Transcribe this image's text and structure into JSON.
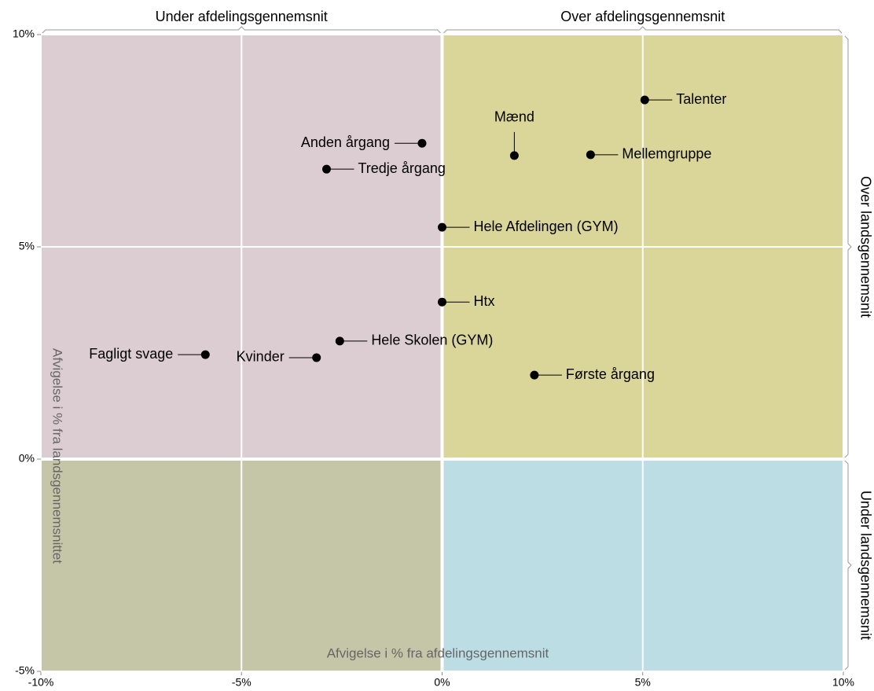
{
  "chart_data": {
    "type": "scatter",
    "x_label": "Afvigelse i % fra afdelingsgennemsnit",
    "y_label": "Afvigelse i % fra landsgennemsnittet",
    "quadrant_labels": {
      "top": [
        "Under afdelingsgennemsnit",
        "Over afdelingsgennemsnit"
      ],
      "right": [
        "Over landsgennemsnit",
        "Under landsgennemsnit"
      ]
    },
    "quadrant_colors": {
      "top_left": "#dccdd3",
      "top_right": "#dad598",
      "bottom_left": "#c5c5a8",
      "bottom_right": "#bcdde4"
    },
    "color": "#000000",
    "points": [
      {
        "label": "Talenter",
        "x": 5.05,
        "y": 8.46
      },
      {
        "label": "Mænd",
        "x": 1.8,
        "y": 7.15
      },
      {
        "label": "Mellemgruppe",
        "x": 3.7,
        "y": 7.17
      },
      {
        "label": "Anden årgang",
        "x": -0.5,
        "y": 7.44
      },
      {
        "label": "Tredje årgang",
        "x": -2.88,
        "y": 6.83
      },
      {
        "label": "Hele Afdelingen (GYM)",
        "x": 0,
        "y": 5.46
      },
      {
        "label": "Htx",
        "x": 0,
        "y": 3.7
      },
      {
        "label": "Hele Skolen (GYM)",
        "x": -2.55,
        "y": 2.78
      },
      {
        "label": "Kvinder",
        "x": -3.13,
        "y": 2.39
      },
      {
        "label": "Fagligt svage",
        "x": -5.9,
        "y": 2.46
      },
      {
        "label": "Første årgang",
        "x": 2.3,
        "y": 1.98
      }
    ],
    "xlim": [
      -10,
      10
    ],
    "ylim": [
      -5,
      10
    ],
    "xticks": [
      {
        "value": -10,
        "label": "-10%"
      },
      {
        "value": -5,
        "label": "-5%"
      },
      {
        "value": 0,
        "label": "0%"
      },
      {
        "value": 5,
        "label": "5%"
      },
      {
        "value": 10,
        "label": "10%"
      }
    ],
    "yticks": [
      {
        "value": -5,
        "label": "-5%"
      },
      {
        "value": 0,
        "label": "0%"
      },
      {
        "value": 5,
        "label": "5%"
      },
      {
        "value": 10,
        "label": "10%"
      }
    ],
    "grid": true
  }
}
